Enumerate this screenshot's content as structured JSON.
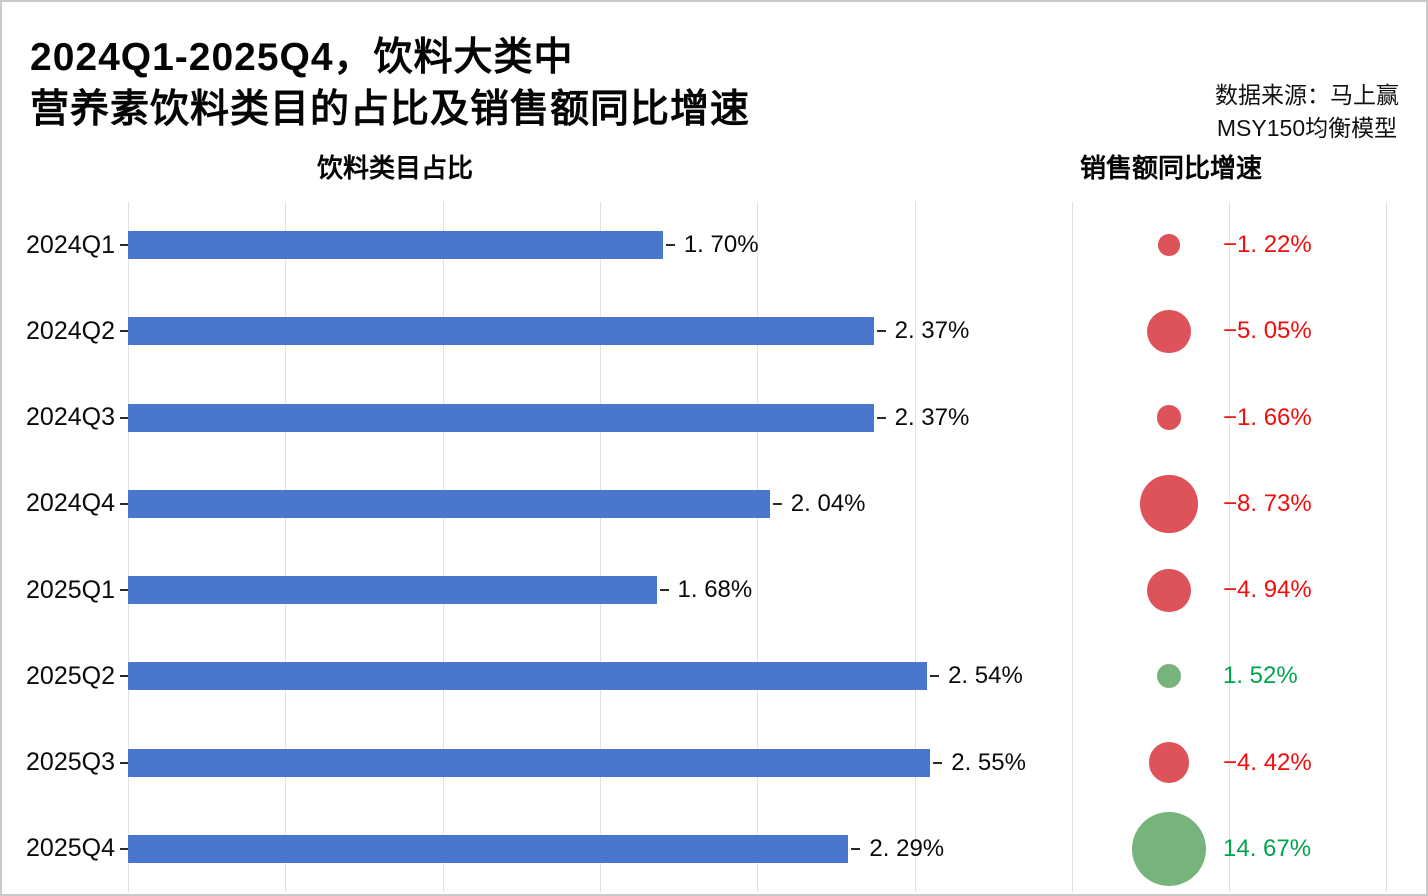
{
  "page": {
    "title_line1": "2024Q1-2025Q4，饮料大类中",
    "title_line2": "营养素饮料类目的占比及销售额同比增速",
    "source_line1": "数据来源：马上赢",
    "source_line2": "MSY150均衡模型",
    "left_panel_header": "饮料类目占比",
    "right_panel_header": "销售额同比增速"
  },
  "colors": {
    "bar_blue": "#4a76cb",
    "bubble_negative": "#de525a",
    "bubble_positive": "#77b47c",
    "label_negative": "#f20d0d",
    "label_positive": "#00a44c",
    "gridline": "#e2e2e2",
    "tick": "#2b2b2b",
    "text": "#0a0a0a"
  },
  "chart_data": [
    {
      "type": "bar",
      "orientation": "horizontal",
      "title": "饮料类目占比",
      "categories": [
        "2024Q1",
        "2024Q2",
        "2024Q3",
        "2024Q4",
        "2025Q1",
        "2025Q2",
        "2025Q3",
        "2025Q4"
      ],
      "values": [
        1.7,
        2.37,
        2.37,
        2.04,
        1.68,
        2.54,
        2.55,
        2.29
      ],
      "value_labels": [
        "1. 70%",
        "2. 37%",
        "2. 37%",
        "2. 04%",
        "1. 68%",
        "2. 54%",
        "2. 55%",
        "2. 29%"
      ],
      "unit": "%",
      "xlabel": "",
      "ylabel": "",
      "xlim": [
        0,
        4.1
      ],
      "gridline_step": 0.5,
      "grid": true,
      "bar_color": "#4a76cb"
    },
    {
      "type": "bubble",
      "title": "销售额同比增速",
      "categories": [
        "2024Q1",
        "2024Q2",
        "2024Q3",
        "2024Q4",
        "2025Q1",
        "2025Q2",
        "2025Q3",
        "2025Q4"
      ],
      "values": [
        -1.22,
        -5.05,
        -1.66,
        -8.73,
        -4.94,
        1.52,
        -4.42,
        14.67
      ],
      "value_labels": [
        "−1. 22%",
        "−5. 05%",
        "−1. 66%",
        "−8. 73%",
        "−4. 94%",
        "1. 52%",
        "−4. 42%",
        "14. 67%"
      ],
      "unit": "%",
      "size_encoding": "radius proportional to sqrt(abs(value))",
      "color_rule": "negative=red, positive=green"
    }
  ]
}
